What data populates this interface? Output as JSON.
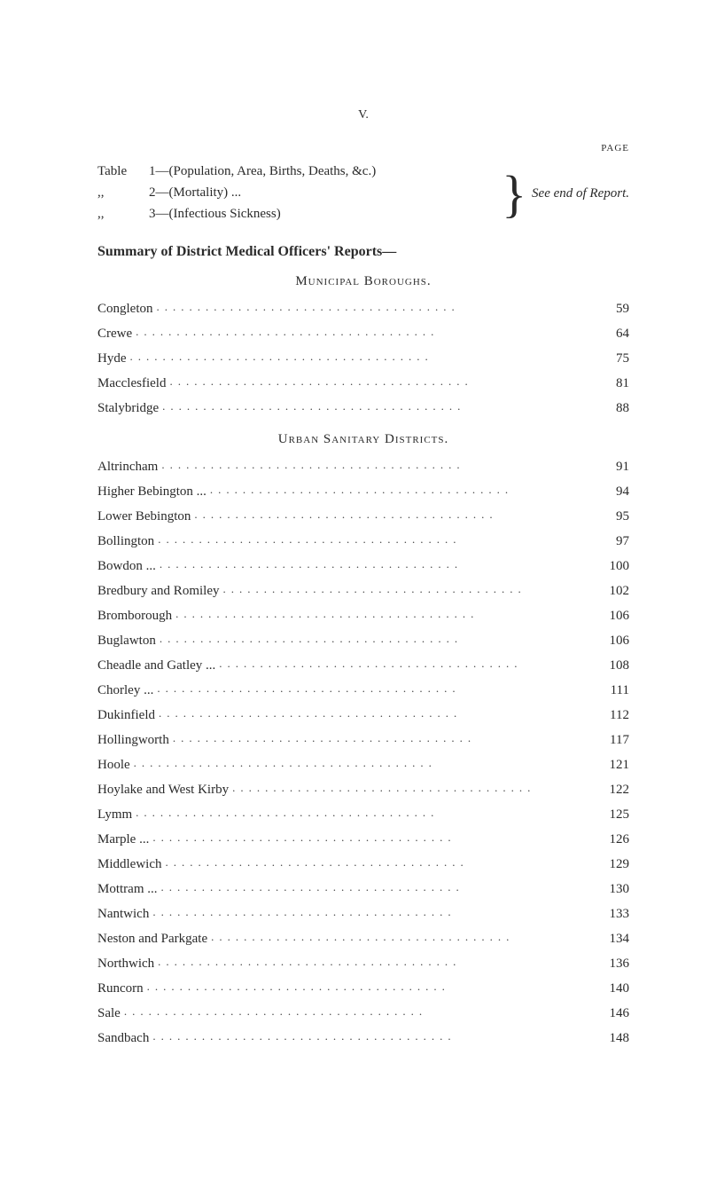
{
  "roman_numeral": "V.",
  "page_label": "PAGE",
  "table_refs": [
    {
      "prefix": "Table",
      "text": "1—(Population, Area, Births, Deaths, &c.)"
    },
    {
      "prefix": ",,",
      "text": "2—(Mortality)             ..."
    },
    {
      "prefix": ",,",
      "text": "3—(Infectious Sickness)"
    }
  ],
  "see_end": "See end of Report.",
  "summary_heading": "Summary of District Medical Officers' Reports—",
  "municipal_heading": "Municipal Boroughs.",
  "municipal_entries": [
    {
      "label": "Congleton",
      "page": "59"
    },
    {
      "label": "Crewe",
      "page": "64"
    },
    {
      "label": "Hyde",
      "page": "75"
    },
    {
      "label": "Macclesfield",
      "page": "81"
    },
    {
      "label": "Stalybridge",
      "page": "88"
    }
  ],
  "urban_heading": "Urban Sanitary Districts.",
  "urban_entries": [
    {
      "label": "Altrincham",
      "page": "91"
    },
    {
      "label": "Higher Bebington ...",
      "page": "94"
    },
    {
      "label": "Lower Bebington",
      "page": "95"
    },
    {
      "label": "Bollington",
      "page": "97"
    },
    {
      "label": "Bowdon ...",
      "page": "100"
    },
    {
      "label": "Bredbury and Romiley",
      "page": "102"
    },
    {
      "label": "Bromborough",
      "page": "106"
    },
    {
      "label": "Buglawton",
      "page": "106"
    },
    {
      "label": "Cheadle and Gatley ...",
      "page": "108"
    },
    {
      "label": "Chorley ...",
      "page": "111"
    },
    {
      "label": "Dukinfield",
      "page": "112"
    },
    {
      "label": "Hollingworth",
      "page": "117"
    },
    {
      "label": "Hoole",
      "page": "121"
    },
    {
      "label": "Hoylake and West Kirby",
      "page": "122"
    },
    {
      "label": "Lymm",
      "page": "125"
    },
    {
      "label": "Marple ...",
      "page": "126"
    },
    {
      "label": "Middlewich",
      "page": "129"
    },
    {
      "label": "Mottram ...",
      "page": "130"
    },
    {
      "label": "Nantwich",
      "page": "133"
    },
    {
      "label": "Neston and Parkgate",
      "page": "134"
    },
    {
      "label": "Northwich",
      "page": "136"
    },
    {
      "label": "Runcorn",
      "page": "140"
    },
    {
      "label": "Sale",
      "page": "146"
    },
    {
      "label": "Sandbach",
      "page": "148"
    }
  ],
  "leader_dots": "....................................."
}
